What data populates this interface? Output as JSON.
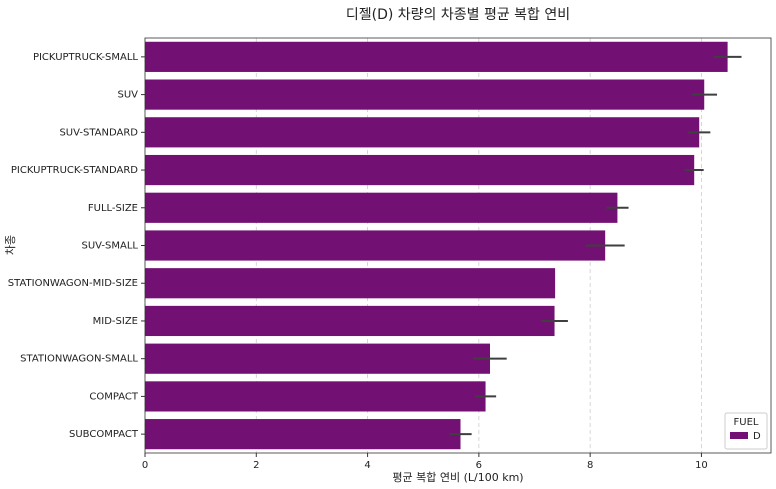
{
  "chart_data": {
    "type": "barh",
    "title": "디젤(D) 차량의 차종별 평균 복합 연비",
    "xlabel": "평균 복합 연비 (L/100 km)",
    "ylabel": "차종",
    "categories": [
      "PICKUPTRUCK-SMALL",
      "SUV",
      "SUV-STANDARD",
      "PICKUPTRUCK-STANDARD",
      "FULL-SIZE",
      "SUV-SMALL",
      "STATIONWAGON-MID-SIZE",
      "MID-SIZE",
      "STATIONWAGON-SMALL",
      "COMPACT",
      "SUBCOMPACT"
    ],
    "series": [
      {
        "name": "D",
        "color": "#731073",
        "values": [
          10.47,
          10.05,
          9.96,
          9.87,
          8.49,
          8.27,
          7.37,
          7.36,
          6.2,
          6.12,
          5.67
        ],
        "errors": [
          0.25,
          0.23,
          0.2,
          0.17,
          0.2,
          0.35,
          0,
          0.24,
          0.3,
          0.19,
          0.2
        ]
      }
    ],
    "legend_title": "FUEL",
    "legend": "lower right",
    "xlim": [
      0,
      11.25
    ],
    "xticks": [
      0,
      2,
      4,
      6,
      8,
      10
    ],
    "grid": true
  }
}
